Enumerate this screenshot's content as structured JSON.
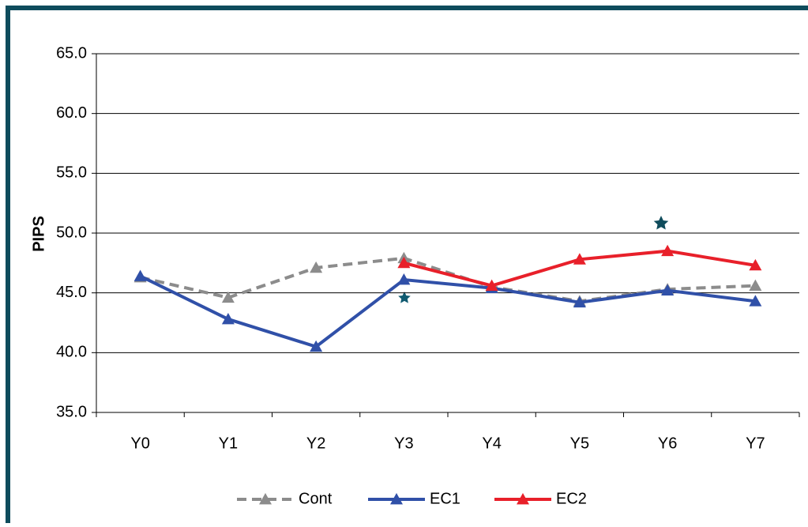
{
  "chart_data": {
    "type": "line",
    "y_label": "PIPS",
    "categories": [
      "Y0",
      "Y1",
      "Y2",
      "Y3",
      "Y4",
      "Y5",
      "Y6",
      "Y7"
    ],
    "series": [
      {
        "name": "Cont",
        "color": "#8c8c8c",
        "dashed": true,
        "values": [
          46.3,
          44.6,
          47.1,
          47.9,
          45.5,
          44.3,
          45.3,
          45.6
        ]
      },
      {
        "name": "EC1",
        "color": "#3050a8",
        "dashed": false,
        "values": [
          46.4,
          42.8,
          40.5,
          46.1,
          45.4,
          44.2,
          45.2,
          44.3
        ]
      },
      {
        "name": "EC2",
        "color": "#e8202a",
        "dashed": false,
        "values": [
          null,
          null,
          null,
          47.5,
          45.6,
          47.8,
          48.5,
          47.3
        ]
      }
    ],
    "ylim": [
      35,
      65
    ],
    "yticks": [
      {
        "value": 35,
        "label": "35.0"
      },
      {
        "value": 40,
        "label": "40.0"
      },
      {
        "value": 45,
        "label": "45.0"
      },
      {
        "value": 50,
        "label": "50.0"
      },
      {
        "value": 55,
        "label": "55.0"
      },
      {
        "value": 60,
        "label": "60.0"
      },
      {
        "value": 65,
        "label": "65.0"
      }
    ],
    "grid": true
  }
}
